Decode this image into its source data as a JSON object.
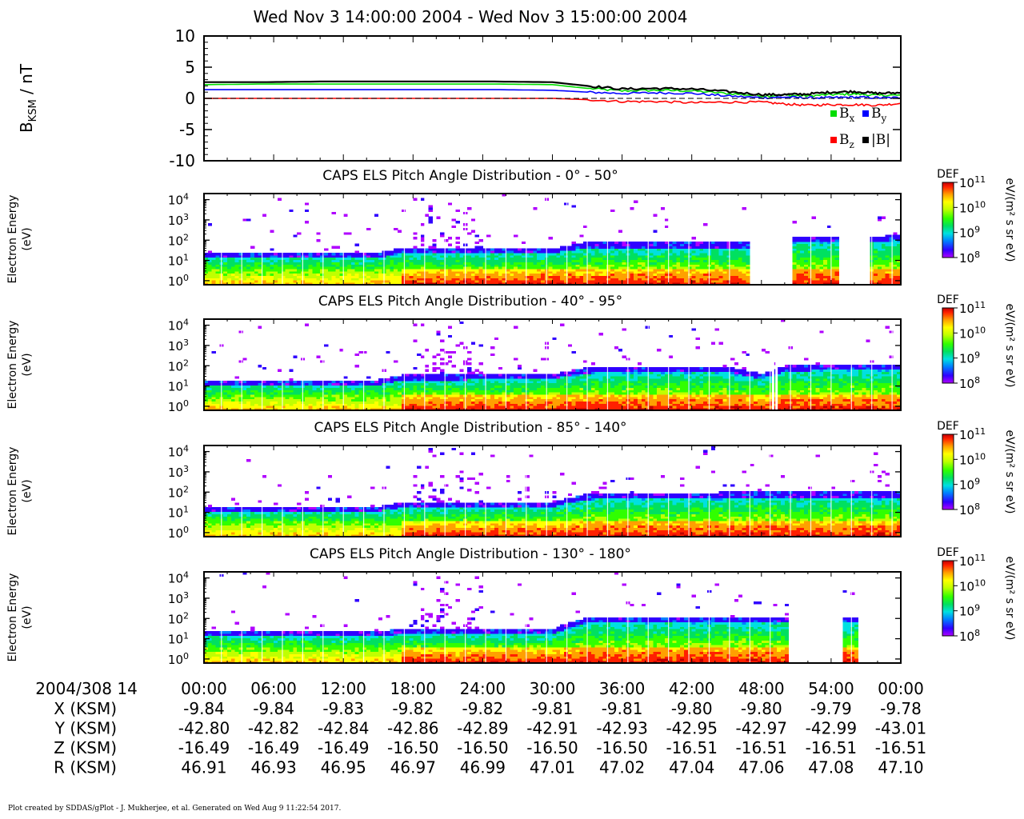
{
  "title": "Wed Nov 3 14:00:00 2004 - Wed Nov 3 15:00:00 2004",
  "footer": "Plot created by SDDAS/gPlot - J. Mukherjee, et al.  Generated on Wed Aug 9 11:22:54 2017.",
  "colors": {
    "bx": "#00dd00",
    "by": "#0000ff",
    "bz": "#ff0000",
    "bmag": "#000000",
    "colormap": [
      "#b000ff",
      "#3000ff",
      "#0080ff",
      "#00e0e0",
      "#00e060",
      "#30ff00",
      "#c0ff00",
      "#ffff00",
      "#ffa000",
      "#ff2000",
      "#c00000"
    ]
  },
  "time_axis": {
    "start_label": "2004/308 14",
    "ticks": [
      "00:00",
      "06:00",
      "12:00",
      "18:00",
      "24:00",
      "30:00",
      "36:00",
      "42:00",
      "48:00",
      "54:00",
      "00:00"
    ]
  },
  "ephemeris": [
    {
      "label": "X (KSM)",
      "values": [
        "-9.84",
        "-9.84",
        "-9.83",
        "-9.82",
        "-9.82",
        "-9.81",
        "-9.81",
        "-9.80",
        "-9.80",
        "-9.79",
        "-9.78"
      ]
    },
    {
      "label": "Y (KSM)",
      "values": [
        "-42.80",
        "-42.82",
        "-42.84",
        "-42.86",
        "-42.89",
        "-42.91",
        "-42.93",
        "-42.95",
        "-42.97",
        "-42.99",
        "-43.01"
      ]
    },
    {
      "label": "Z (KSM)",
      "values": [
        "-16.49",
        "-16.49",
        "-16.49",
        "-16.50",
        "-16.50",
        "-16.50",
        "-16.50",
        "-16.51",
        "-16.51",
        "-16.51",
        "-16.51"
      ]
    },
    {
      "label": "R (KSM)",
      "values": [
        "46.91",
        "46.93",
        "46.95",
        "46.97",
        "46.99",
        "47.01",
        "47.02",
        "47.04",
        "47.06",
        "47.08",
        "47.10"
      ]
    }
  ],
  "chart_data": [
    {
      "type": "line",
      "ylabel_main": "B",
      "ylabel_sub": "KSM",
      "ylabel_unit": " / nT",
      "ylim": [
        -10,
        10
      ],
      "yticks": [
        "10",
        "5",
        "0",
        "-5",
        "-10"
      ],
      "x_minutes": [
        0,
        5,
        10,
        15,
        20,
        25,
        30,
        33,
        36,
        39,
        42,
        45,
        48,
        50,
        52,
        54,
        56,
        58,
        60
      ],
      "series": [
        {
          "name": "B",
          "sub": "x",
          "color": "#00dd00",
          "values": [
            2.2,
            2.3,
            2.3,
            2.3,
            2.3,
            2.3,
            2.2,
            1.6,
            1.2,
            1.3,
            1.2,
            0.8,
            0.4,
            0.5,
            0.4,
            0.6,
            0.7,
            0.5,
            0.5
          ]
        },
        {
          "name": "B",
          "sub": "y",
          "color": "#0000ff",
          "values": [
            1.4,
            1.4,
            1.4,
            1.4,
            1.4,
            1.4,
            1.3,
            1.0,
            0.8,
            0.9,
            0.8,
            0.4,
            0.1,
            0.2,
            0.1,
            0.1,
            0.2,
            0.1,
            0.1
          ]
        },
        {
          "name": "B",
          "sub": "z",
          "color": "#ff0000",
          "values": [
            0.0,
            0.0,
            0.0,
            0.0,
            0.0,
            0.0,
            0.0,
            -0.2,
            -0.5,
            -0.5,
            -0.7,
            -0.6,
            -0.6,
            -0.9,
            -1.1,
            -1.0,
            -1.0,
            -1.1,
            -0.8
          ]
        },
        {
          "name": "|B|",
          "sub": "",
          "color": "#000000",
          "values": [
            2.6,
            2.6,
            2.7,
            2.7,
            2.7,
            2.7,
            2.6,
            2.0,
            1.5,
            1.6,
            1.5,
            1.1,
            0.6,
            0.6,
            0.7,
            1.0,
            1.1,
            0.8,
            0.9
          ]
        }
      ]
    },
    {
      "type": "heatmap",
      "title": "CAPS ELS Pitch Angle Distribution - 0° - 50°",
      "ylabel": [
        "Electron Energy",
        "(eV)"
      ],
      "colorbar": {
        "label": "DEF",
        "unit": "eV/(m² s sr eV)",
        "ticks": [
          "11",
          "10",
          "9",
          "8"
        ]
      },
      "gaps_minutes": [
        [
          47.0,
          50.7
        ],
        [
          54.7,
          57.3
        ]
      ],
      "dropouts_minutes": [],
      "end_minutes": 60,
      "upper_edge": [
        [
          0,
          25
        ],
        [
          15,
          25
        ],
        [
          17,
          40
        ],
        [
          30,
          40
        ],
        [
          33,
          80
        ],
        [
          45,
          80
        ],
        [
          47,
          80
        ],
        [
          51,
          150
        ],
        [
          54,
          150
        ],
        [
          58,
          150
        ],
        [
          60,
          200
        ]
      ]
    },
    {
      "type": "heatmap",
      "title": "CAPS ELS Pitch Angle Distribution - 40° - 95°",
      "ylabel": [
        "Electron Energy",
        "(eV)"
      ],
      "colorbar": {
        "label": "DEF",
        "unit": "eV/(m² s sr eV)",
        "ticks": [
          "11",
          "10",
          "9",
          "8"
        ]
      },
      "gaps_minutes": [],
      "dropouts_minutes": [
        49.0,
        49.3
      ],
      "end_minutes": 60,
      "upper_edge": [
        [
          0,
          20
        ],
        [
          15,
          20
        ],
        [
          17,
          35
        ],
        [
          30,
          40
        ],
        [
          33,
          80
        ],
        [
          45,
          90
        ],
        [
          48,
          40
        ],
        [
          50,
          100
        ],
        [
          60,
          120
        ]
      ]
    },
    {
      "type": "heatmap",
      "title": "CAPS ELS Pitch Angle Distribution - 85° - 140°",
      "ylabel": [
        "Electron Energy",
        "(eV)"
      ],
      "colorbar": {
        "label": "DEF",
        "unit": "eV/(m² s sr eV)",
        "ticks": [
          "11",
          "10",
          "9",
          "8"
        ]
      },
      "gaps_minutes": [],
      "dropouts_minutes": [],
      "end_minutes": 60,
      "upper_edge": [
        [
          0,
          20
        ],
        [
          15,
          20
        ],
        [
          17,
          30
        ],
        [
          30,
          35
        ],
        [
          33,
          80
        ],
        [
          45,
          100
        ],
        [
          60,
          100
        ]
      ]
    },
    {
      "type": "heatmap",
      "title": "CAPS ELS Pitch Angle Distribution - 130° - 180°",
      "ylabel": [
        "Electron Energy",
        "(eV)"
      ],
      "colorbar": {
        "label": "DEF",
        "unit": "eV/(m² s sr eV)",
        "ticks": [
          "11",
          "10",
          "9",
          "8"
        ]
      },
      "gaps_minutes": [
        [
          50.2,
          55.0
        ],
        [
          56.2,
          60
        ]
      ],
      "dropouts_minutes": [],
      "end_minutes": 60,
      "upper_edge": [
        [
          0,
          25
        ],
        [
          15,
          25
        ],
        [
          17,
          30
        ],
        [
          30,
          30
        ],
        [
          31,
          50
        ],
        [
          33,
          120
        ],
        [
          45,
          120
        ],
        [
          50,
          120
        ]
      ]
    }
  ]
}
